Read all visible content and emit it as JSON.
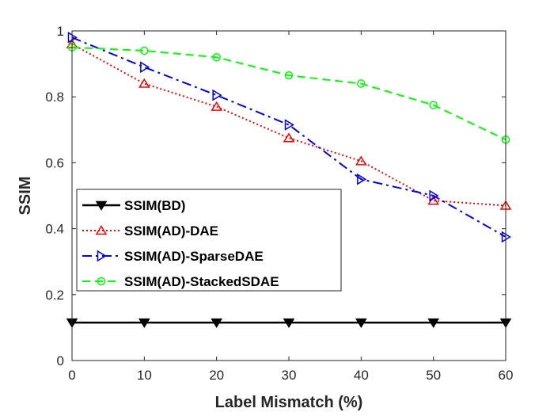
{
  "chart_data": {
    "type": "line",
    "title": "",
    "xlabel": "Label Mismatch (%)",
    "ylabel": "SSIM",
    "x": [
      0,
      10,
      20,
      30,
      40,
      50,
      60
    ],
    "xlim": [
      0,
      60
    ],
    "ylim": [
      0,
      1
    ],
    "xticks": [
      0,
      10,
      20,
      30,
      40,
      50,
      60
    ],
    "yticks": [
      0,
      0.2,
      0.4,
      0.6,
      0.8,
      1
    ],
    "ytick_labels": [
      "0",
      "0.2",
      "0.4",
      "0.6",
      "0.8",
      "1"
    ],
    "grid": false,
    "legend_position": "left-middle",
    "series": [
      {
        "name": "SSIM(BD)",
        "color": "#000000",
        "dash": "solid",
        "marker": "triangle-down",
        "values": [
          0.115,
          0.115,
          0.115,
          0.115,
          0.115,
          0.115,
          0.115
        ]
      },
      {
        "name": "SSIM(AD)-DAE",
        "color": "#ff0000",
        "dash": "dotted",
        "marker": "triangle-up",
        "values": [
          0.96,
          0.84,
          0.77,
          0.675,
          0.605,
          0.485,
          0.47
        ]
      },
      {
        "name": "SSIM(AD)-SparseDAE",
        "color": "#0000ff",
        "dash": "dashdot",
        "marker": "triangle-right",
        "values": [
          0.98,
          0.89,
          0.805,
          0.715,
          0.55,
          0.5,
          0.375
        ]
      },
      {
        "name": "SSIM(AD)-StackedSDAE",
        "color": "#00ff00",
        "dash": "dashed",
        "marker": "circle",
        "values": [
          0.95,
          0.94,
          0.92,
          0.865,
          0.84,
          0.775,
          0.67
        ]
      }
    ]
  }
}
